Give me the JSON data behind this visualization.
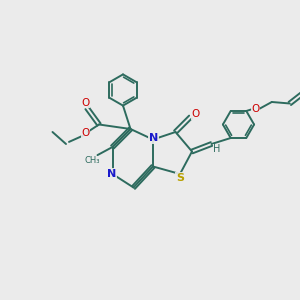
{
  "bg_color": "#ebebeb",
  "bond_color": "#2d6b5e",
  "n_color": "#1a1acc",
  "s_color": "#b8a000",
  "o_color": "#cc0000",
  "figsize": [
    3.0,
    3.0
  ],
  "dpi": 100,
  "xlim": [
    0,
    10
  ],
  "ylim": [
    0,
    10
  ]
}
